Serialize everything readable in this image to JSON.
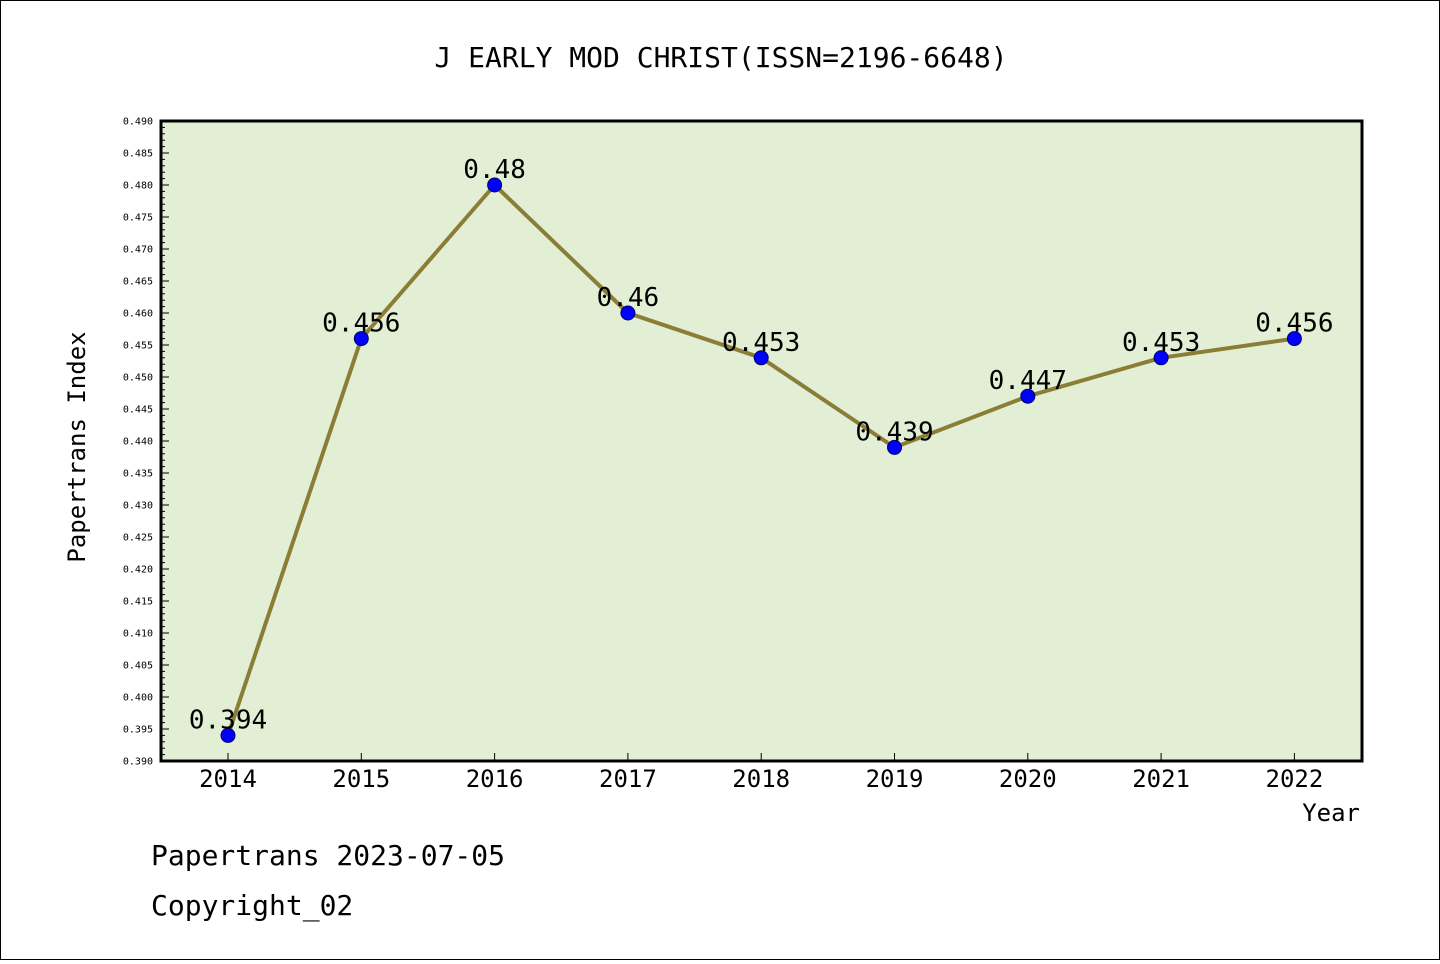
{
  "chart_data": {
    "type": "line",
    "title": "J EARLY MOD CHRIST(ISSN=2196-6648)",
    "xlabel": "Year",
    "ylabel": "Papertrans Index",
    "categories": [
      "2014",
      "2015",
      "2016",
      "2017",
      "2018",
      "2019",
      "2020",
      "2021",
      "2022"
    ],
    "series": [
      {
        "values": [
          0.394,
          0.456,
          0.48,
          0.46,
          0.453,
          0.439,
          0.447,
          0.453,
          0.456
        ],
        "data_labels": [
          "0.394",
          "0.456",
          "0.48",
          "0.46",
          "0.453",
          "0.439",
          "0.447",
          "0.453",
          "0.456"
        ]
      }
    ],
    "ylim": [
      0.39,
      0.49
    ],
    "ytick_labels": [
      "0.390",
      "0.395",
      "0.400",
      "0.405",
      "0.410",
      "0.415",
      "0.420",
      "0.425",
      "0.430",
      "0.435",
      "0.440",
      "0.445",
      "0.450",
      "0.455",
      "0.460",
      "0.465",
      "0.470",
      "0.475",
      "0.480",
      "0.485",
      "0.490"
    ],
    "grid": false,
    "colors": {
      "plot_background": "#e2efd5",
      "line": "#8b7d35",
      "marker": "#0000ff"
    }
  },
  "footer": {
    "line1": "Papertrans 2023-07-05",
    "line2": "Copyright_02"
  }
}
